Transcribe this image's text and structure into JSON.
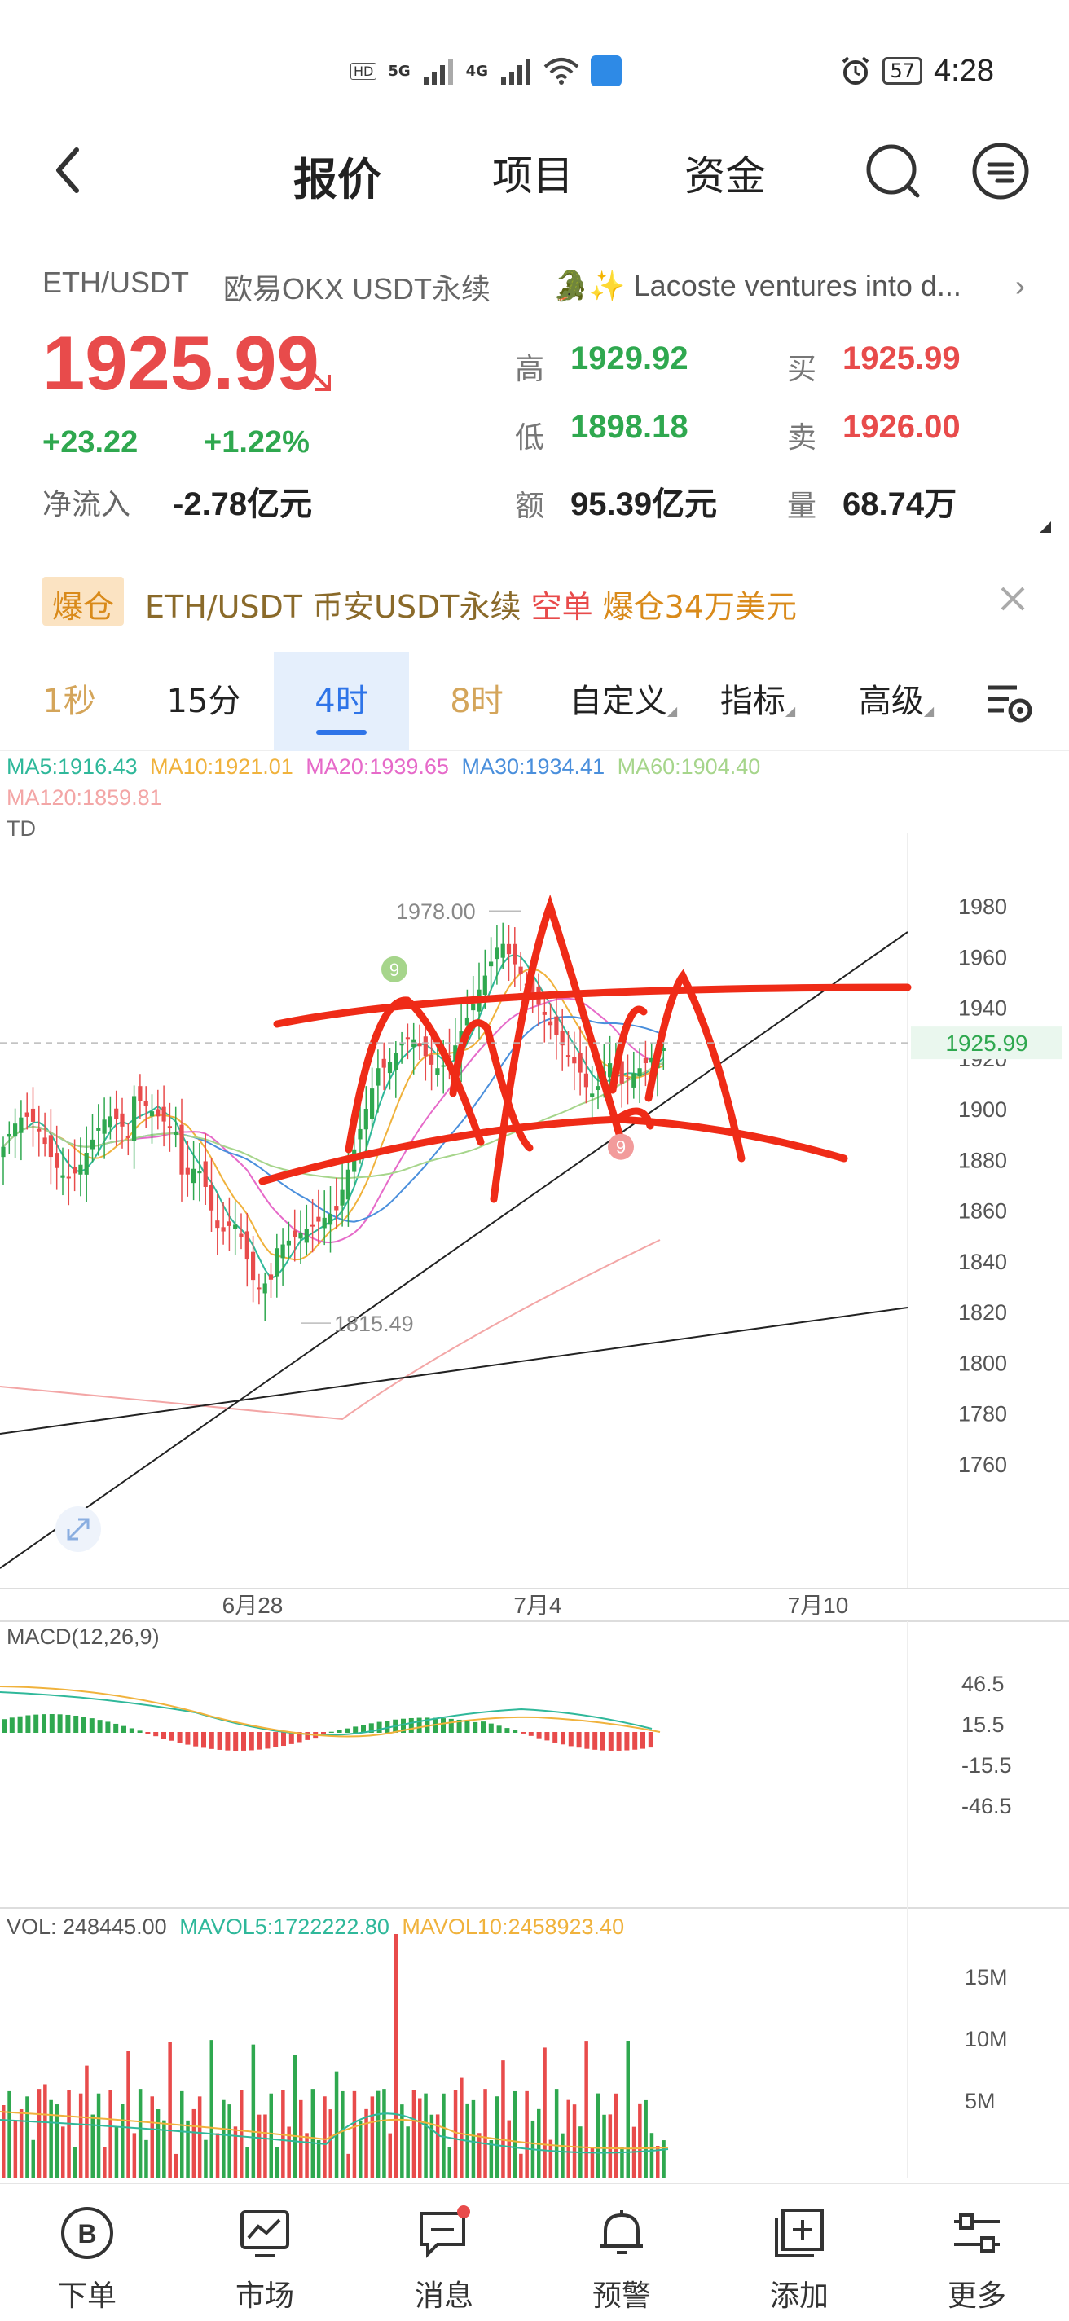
{
  "status_bar": {
    "net1": "5G",
    "net2": "4G",
    "battery": "57",
    "time": "4:28"
  },
  "nav": {
    "tabs": [
      "报价",
      "项目",
      "资金"
    ],
    "active_tab": "报价"
  },
  "ticker": {
    "pair": "ETH/USDT",
    "exchange": "欧易OKX USDT永续",
    "news": "🐊✨ Lacoste ventures into d...",
    "last_price": "1925.99",
    "change": "+23.22",
    "change_pct": "+1.22%",
    "netflow_label": "净流入",
    "netflow_value": "-2.78亿元",
    "stats": {
      "high_label": "高",
      "high": "1929.92",
      "low_label": "低",
      "low": "1898.18",
      "amount_label": "额",
      "amount": "95.39亿元",
      "bid_label": "买",
      "bid": "1925.99",
      "ask_label": "卖",
      "ask": "1926.00",
      "volume_label": "量",
      "volume": "68.74万"
    }
  },
  "liquidation": {
    "badge": "爆仓",
    "text_pair": "ETH/USDT 币安USDT永续 ",
    "text_side": "空单",
    "text_amount": " 爆仓34万美元"
  },
  "timeframes": [
    "1秒",
    "15分",
    "4时",
    "8时",
    "自定义",
    "指标",
    "高级"
  ],
  "active_timeframe": "4时",
  "chart_data": {
    "type": "candlestick",
    "ma_legend": {
      "ma5": "MA5:1916.43",
      "ma10": "MA10:1921.01",
      "ma20": "MA20:1939.65",
      "ma30": "MA30:1934.41",
      "ma60": "MA60:1904.40",
      "ma120": "MA120:1859.81"
    },
    "td_label": "TD",
    "y_ticks": [
      "1980",
      "1960",
      "1940",
      "1920",
      "1900",
      "1880",
      "1860",
      "1840",
      "1820",
      "1800",
      "1780",
      "1760"
    ],
    "ylim": [
      1760,
      1980
    ],
    "x_ticks": [
      "6月28",
      "7月4",
      "7月10"
    ],
    "last_price_tag": "1925.99",
    "high_annotation": "1978.00",
    "low_annotation": "1815.49",
    "td_markers": [
      "9",
      "9"
    ],
    "colors": {
      "up": "#2fa84f",
      "down": "#e84b4b",
      "ma5": "#2fb89a",
      "ma10": "#f0b23c",
      "ma20": "#e66ac9",
      "ma30": "#4a8fdc",
      "ma60": "#a6d58b",
      "ma120": "#f3a6a6"
    }
  },
  "macd": {
    "label": "MACD(12,26,9)",
    "y_ticks": [
      "46.5",
      "15.5",
      "-15.5",
      "-46.5"
    ]
  },
  "volume": {
    "label": "VOL: 248445.00",
    "mavol5": "MAVOL5:1722222.80",
    "mavol10": "MAVOL10:2458923.40",
    "y_ticks": [
      "15M",
      "10M",
      "5M"
    ]
  },
  "tab_bar": [
    {
      "label": "下单",
      "icon": "order-icon"
    },
    {
      "label": "市场",
      "icon": "market-icon"
    },
    {
      "label": "消息",
      "icon": "message-icon"
    },
    {
      "label": "预警",
      "icon": "bell-icon"
    },
    {
      "label": "添加",
      "icon": "add-icon"
    },
    {
      "label": "更多",
      "icon": "more-icon"
    }
  ]
}
